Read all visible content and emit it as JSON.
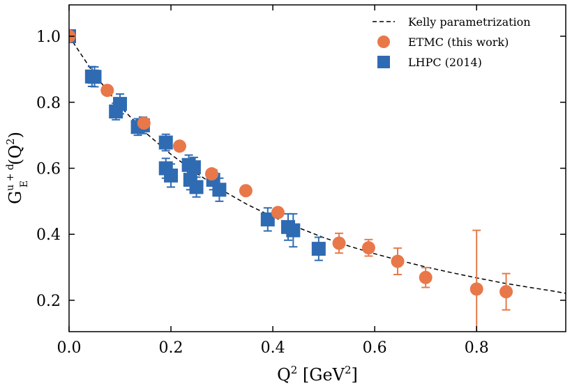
{
  "chart_data": {
    "type": "scatter",
    "xlabel_main": "Q",
    "xlabel_sup": "2",
    "xlabel_tail": " [GeV",
    "xlabel_sup2": "2",
    "xlabel_close": "]",
    "ylabel_main": "G",
    "ylabel_sup": "u + d",
    "ylabel_sub": "E",
    "ylabel_tail": "(Q",
    "ylabel_sup2": "2",
    "ylabel_close": ")",
    "xlim": [
      0.0,
      0.975
    ],
    "ylim": [
      0.105,
      1.095
    ],
    "x_ticks": [
      "0.0",
      "0.2",
      "0.4",
      "0.6",
      "0.8"
    ],
    "y_ticks": [
      "0.2",
      "0.4",
      "0.6",
      "0.8",
      "1.0"
    ],
    "legend_position": "top-right",
    "grid": false,
    "series": [
      {
        "name": "Kelly parametrization",
        "kind": "dashed-line",
        "color": "#000000",
        "x": [
          0.0,
          0.05,
          0.1,
          0.15,
          0.2,
          0.25,
          0.3,
          0.35,
          0.4,
          0.45,
          0.5,
          0.55,
          0.6,
          0.65,
          0.7,
          0.75,
          0.8,
          0.85,
          0.9,
          0.95,
          0.975
        ],
        "y": [
          1.0,
          0.884,
          0.788,
          0.708,
          0.642,
          0.585,
          0.534,
          0.49,
          0.453,
          0.42,
          0.39,
          0.364,
          0.341,
          0.32,
          0.301,
          0.284,
          0.268,
          0.253,
          0.24,
          0.228,
          0.221
        ]
      },
      {
        "name": "ETMC (this work)",
        "kind": "circle",
        "color": "#e8784a",
        "points": [
          {
            "x": 0.0,
            "y": 1.0,
            "err": 0.004
          },
          {
            "x": 0.075,
            "y": 0.836,
            "err": 0.008
          },
          {
            "x": 0.147,
            "y": 0.737,
            "err": 0.008
          },
          {
            "x": 0.217,
            "y": 0.667,
            "err": 0.008
          },
          {
            "x": 0.28,
            "y": 0.583,
            "err": 0.012
          },
          {
            "x": 0.347,
            "y": 0.532,
            "err": 0.01
          },
          {
            "x": 0.41,
            "y": 0.466,
            "err": 0.012
          },
          {
            "x": 0.53,
            "y": 0.373,
            "err": 0.03
          },
          {
            "x": 0.588,
            "y": 0.359,
            "err": 0.025
          },
          {
            "x": 0.645,
            "y": 0.318,
            "err": 0.04
          },
          {
            "x": 0.7,
            "y": 0.269,
            "err": 0.03
          },
          {
            "x": 0.8,
            "y": 0.234,
            "err": 0.178
          },
          {
            "x": 0.858,
            "y": 0.226,
            "err": 0.055
          }
        ]
      },
      {
        "name": "LHPC (2014)",
        "kind": "square",
        "color": "#2f6bb2",
        "points": [
          {
            "x": 0.0,
            "y": 1.0,
            "err": 0.005
          },
          {
            "x": 0.045,
            "y": 0.878,
            "err": 0.03
          },
          {
            "x": 0.05,
            "y": 0.877,
            "err": 0.03
          },
          {
            "x": 0.092,
            "y": 0.772,
            "err": 0.025
          },
          {
            "x": 0.1,
            "y": 0.795,
            "err": 0.03
          },
          {
            "x": 0.135,
            "y": 0.725,
            "err": 0.025
          },
          {
            "x": 0.145,
            "y": 0.73,
            "err": 0.025
          },
          {
            "x": 0.19,
            "y": 0.678,
            "err": 0.025
          },
          {
            "x": 0.19,
            "y": 0.6,
            "err": 0.03
          },
          {
            "x": 0.2,
            "y": 0.578,
            "err": 0.035
          },
          {
            "x": 0.235,
            "y": 0.61,
            "err": 0.03
          },
          {
            "x": 0.245,
            "y": 0.603,
            "err": 0.03
          },
          {
            "x": 0.238,
            "y": 0.565,
            "err": 0.03
          },
          {
            "x": 0.25,
            "y": 0.543,
            "err": 0.03
          },
          {
            "x": 0.283,
            "y": 0.565,
            "err": 0.03
          },
          {
            "x": 0.295,
            "y": 0.535,
            "err": 0.035
          },
          {
            "x": 0.39,
            "y": 0.445,
            "err": 0.035
          },
          {
            "x": 0.43,
            "y": 0.422,
            "err": 0.04
          },
          {
            "x": 0.44,
            "y": 0.412,
            "err": 0.05
          },
          {
            "x": 0.49,
            "y": 0.356,
            "err": 0.035
          }
        ]
      }
    ]
  }
}
